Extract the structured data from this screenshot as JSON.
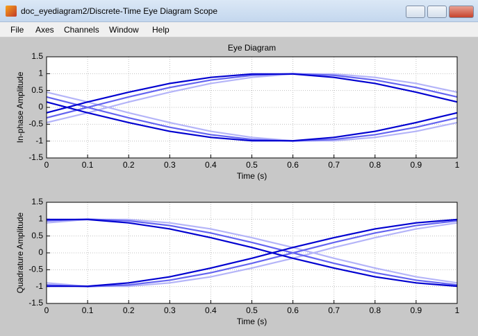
{
  "window": {
    "title": "doc_eyediagram2/Discrete-Time Eye Diagram Scope"
  },
  "menu": [
    "File",
    "Axes",
    "Channels",
    "Window",
    "Help"
  ],
  "chart_data": [
    {
      "type": "line",
      "title": "Eye Diagram",
      "x_label": "Time (s)",
      "y_label": "In-phase Amplitude",
      "x": [
        0,
        0.1,
        0.2,
        0.3,
        0.4,
        0.5,
        0.6,
        0.7,
        0.8,
        0.9,
        1
      ],
      "series": [
        {
          "color": "#b4b4f8",
          "values": [
            -0.45,
            -0.16,
            0.16,
            0.45,
            0.71,
            0.89,
            0.99,
            0.99,
            0.89,
            0.71,
            0.45
          ]
        },
        {
          "color": "#b4b4f8",
          "values": [
            0.45,
            0.16,
            -0.16,
            -0.45,
            -0.71,
            -0.89,
            -0.99,
            -0.99,
            -0.89,
            -0.71,
            -0.45
          ]
        },
        {
          "color": "#6464f0",
          "values": [
            -0.31,
            0,
            0.31,
            0.59,
            0.81,
            0.95,
            1,
            0.95,
            0.81,
            0.59,
            0.31
          ]
        },
        {
          "color": "#6464f0",
          "values": [
            0.31,
            0,
            -0.31,
            -0.59,
            -0.81,
            -0.95,
            -1,
            -0.95,
            -0.81,
            -0.59,
            -0.31
          ]
        },
        {
          "color": "#0000d0",
          "values": [
            -0.16,
            0.16,
            0.45,
            0.71,
            0.89,
            0.99,
            0.99,
            0.89,
            0.71,
            0.45,
            0.16
          ]
        },
        {
          "color": "#0000d0",
          "values": [
            0.16,
            -0.16,
            -0.45,
            -0.71,
            -0.89,
            -0.99,
            -0.99,
            -0.89,
            -0.71,
            -0.45,
            -0.16
          ]
        }
      ],
      "xlim": [
        0,
        1
      ],
      "ylim": [
        -1.5,
        1.5
      ],
      "xticks": [
        0,
        0.1,
        0.2,
        0.3,
        0.4,
        0.5,
        0.6,
        0.7,
        0.8,
        0.9,
        1
      ],
      "yticks": [
        -1.5,
        -1,
        -0.5,
        0,
        0.5,
        1,
        1.5
      ],
      "grid": true
    },
    {
      "type": "line",
      "x_label": "Time (s)",
      "y_label": "Quadrature Amplitude",
      "x": [
        0,
        0.1,
        0.2,
        0.3,
        0.4,
        0.5,
        0.6,
        0.7,
        0.8,
        0.9,
        1
      ],
      "series": [
        {
          "color": "#b4b4f8",
          "values": [
            0.89,
            0.99,
            0.99,
            0.89,
            0.71,
            0.45,
            0.16,
            -0.16,
            -0.45,
            -0.71,
            -0.89
          ]
        },
        {
          "color": "#b4b4f8",
          "values": [
            -0.89,
            -0.99,
            -0.99,
            -0.89,
            -0.71,
            -0.45,
            -0.16,
            0.16,
            0.45,
            0.71,
            0.89
          ]
        },
        {
          "color": "#6464f0",
          "values": [
            0.95,
            1,
            0.95,
            0.81,
            0.59,
            0.31,
            0,
            -0.31,
            -0.59,
            -0.81,
            -0.95
          ]
        },
        {
          "color": "#6464f0",
          "values": [
            -0.95,
            -1,
            -0.95,
            -0.81,
            -0.59,
            -0.31,
            0,
            0.31,
            0.59,
            0.81,
            0.95
          ]
        },
        {
          "color": "#0000d0",
          "values": [
            0.99,
            0.99,
            0.89,
            0.71,
            0.45,
            0.16,
            -0.16,
            -0.45,
            -0.71,
            -0.89,
            -0.99
          ]
        },
        {
          "color": "#0000d0",
          "values": [
            -0.99,
            -0.99,
            -0.89,
            -0.71,
            -0.45,
            -0.16,
            0.16,
            0.45,
            0.71,
            0.89,
            0.99
          ]
        }
      ],
      "xlim": [
        0,
        1
      ],
      "ylim": [
        -1.5,
        1.5
      ],
      "xticks": [
        0,
        0.1,
        0.2,
        0.3,
        0.4,
        0.5,
        0.6,
        0.7,
        0.8,
        0.9,
        1
      ],
      "yticks": [
        -1.5,
        -1,
        -0.5,
        0,
        0.5,
        1,
        1.5
      ],
      "grid": true
    }
  ]
}
